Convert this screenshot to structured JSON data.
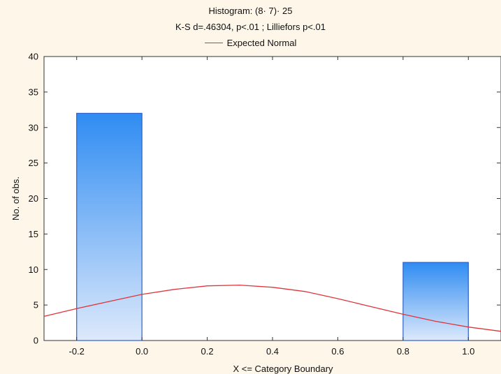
{
  "chart_data": {
    "type": "bar",
    "title": "Histogram: (8· 7)· 25",
    "subtitle": "K-S d=.46304, p<.01 ; Lilliefors p<.01",
    "xlabel": "X <= Category Boundary",
    "ylabel": "No. of obs.",
    "xlim": [
      -0.3,
      1.1
    ],
    "ylim": [
      0,
      40
    ],
    "x_ticks": [
      "-0.2",
      "0.0",
      "0.2",
      "0.4",
      "0.6",
      "0.8",
      "1.0"
    ],
    "y_ticks": [
      "0",
      "5",
      "10",
      "15",
      "20",
      "25",
      "30",
      "35",
      "40"
    ],
    "bars": [
      {
        "x0": -0.2,
        "x1": 0.0,
        "value": 32
      },
      {
        "x0": 0.8,
        "x1": 1.0,
        "value": 11
      }
    ],
    "series": [
      {
        "name": "Expected Normal",
        "color": "#e0343a",
        "x": [
          -0.3,
          -0.2,
          -0.1,
          0.0,
          0.1,
          0.2,
          0.3,
          0.4,
          0.5,
          0.6,
          0.7,
          0.8,
          0.9,
          1.0,
          1.1
        ],
        "y": [
          3.4,
          4.5,
          5.5,
          6.5,
          7.2,
          7.7,
          7.8,
          7.5,
          6.9,
          5.9,
          4.8,
          3.7,
          2.7,
          1.9,
          1.3
        ]
      }
    ],
    "grid": false,
    "legend_position": "top-center",
    "bar_color_top": "#2f8cf2",
    "bar_color_bottom": "#dde9fb",
    "bar_edge_color": "#2d5fc9"
  }
}
